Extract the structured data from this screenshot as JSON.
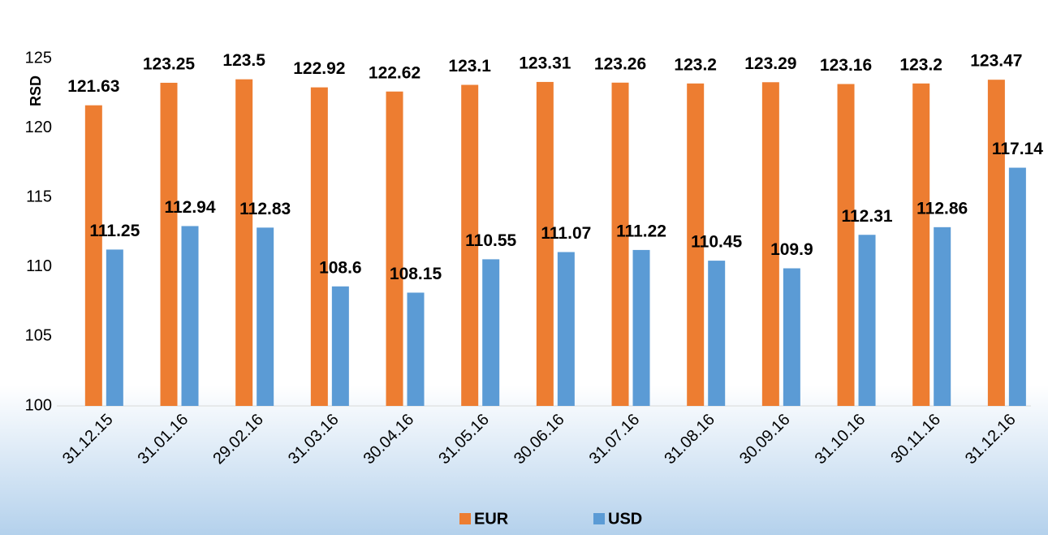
{
  "chart_data": {
    "type": "bar",
    "y_axis_label": "RSD",
    "categories": [
      "31.12.15",
      "31.01.16",
      "29.02.16",
      "31.03.16",
      "30.04.16",
      "31.05.16",
      "30.06.16",
      "31.07.16",
      "31.08.16",
      "30.09.16",
      "31.10.16",
      "30.11.16",
      "31.12.16"
    ],
    "series": [
      {
        "name": "EUR",
        "color": "#ed7d31",
        "values": [
          121.63,
          123.25,
          123.5,
          122.92,
          122.62,
          123.1,
          123.31,
          123.26,
          123.2,
          123.29,
          123.16,
          123.2,
          123.47
        ]
      },
      {
        "name": "USD",
        "color": "#5b9bd5",
        "values": [
          111.25,
          112.94,
          112.83,
          108.6,
          108.15,
          110.55,
          111.07,
          111.22,
          110.45,
          109.9,
          112.31,
          112.86,
          117.14
        ]
      }
    ],
    "ylim": [
      100,
      125
    ],
    "yticks": [
      100,
      105,
      110,
      115,
      120,
      125
    ],
    "grid": false,
    "legend": "bottom"
  }
}
